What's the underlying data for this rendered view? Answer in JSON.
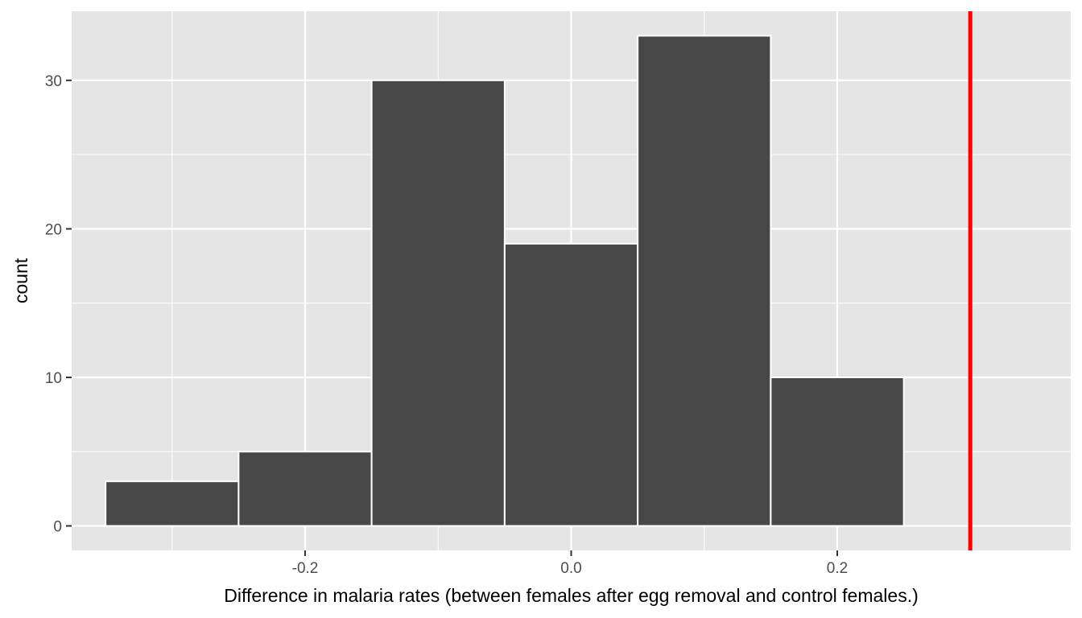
{
  "chart_data": {
    "type": "bar",
    "subtype": "histogram",
    "bins": [
      {
        "x0": -0.35,
        "x1": -0.25,
        "count": 3
      },
      {
        "x0": -0.25,
        "x1": -0.15,
        "count": 5
      },
      {
        "x0": -0.15,
        "x1": -0.05,
        "count": 30
      },
      {
        "x0": -0.05,
        "x1": 0.05,
        "count": 19
      },
      {
        "x0": 0.05,
        "x1": 0.15,
        "count": 33
      },
      {
        "x0": 0.15,
        "x1": 0.25,
        "count": 10
      }
    ],
    "reference_line": {
      "x": 0.3,
      "color": "#ff0000"
    },
    "xlabel": "Difference in malaria rates (between females after egg removal and control females.)",
    "ylabel": "count",
    "xlim": [
      -0.3755,
      0.3755
    ],
    "ylim": [
      -1.65,
      34.65
    ],
    "x_ticks": [
      {
        "value": -0.2,
        "label": "-0.2"
      },
      {
        "value": 0.0,
        "label": "0.0"
      },
      {
        "value": 0.2,
        "label": "0.2"
      }
    ],
    "x_minor_ticks": [
      -0.3,
      -0.1,
      0.1,
      0.3
    ],
    "y_ticks": [
      {
        "value": 0,
        "label": "0"
      },
      {
        "value": 10,
        "label": "10"
      },
      {
        "value": 20,
        "label": "20"
      },
      {
        "value": 30,
        "label": "30"
      }
    ],
    "y_minor_ticks": [
      5,
      15,
      25
    ],
    "grid": true,
    "colors": {
      "panel_background": "#e5e5e5",
      "grid": "#ffffff",
      "bar_fill": "#474747",
      "bar_outline": "#ffffff",
      "tick_mark": "#333333"
    }
  }
}
